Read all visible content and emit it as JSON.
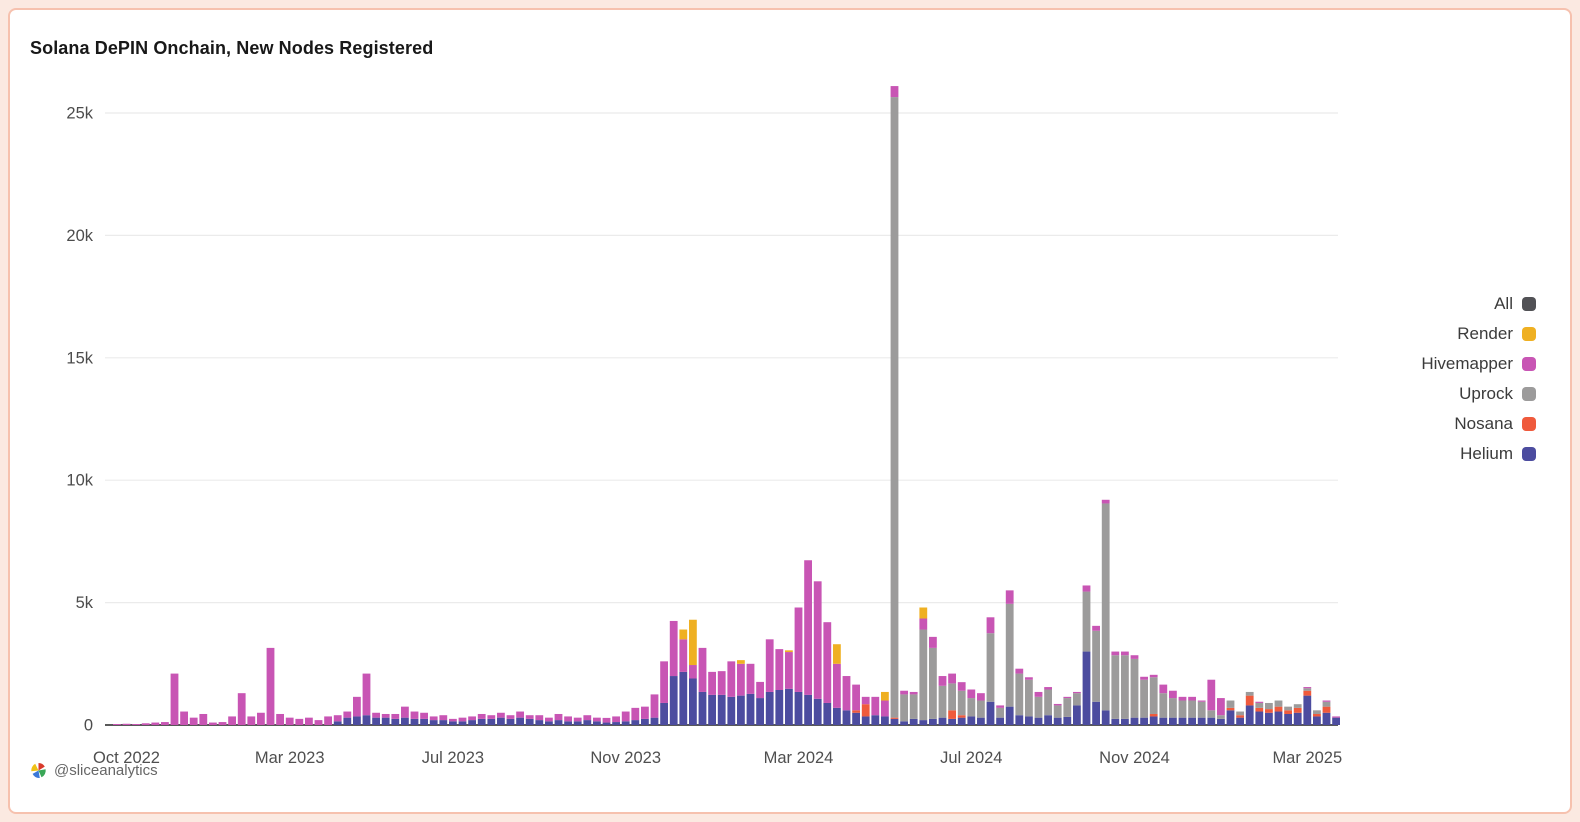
{
  "header": {
    "title": "Solana DePIN Onchain, New Nodes Registered"
  },
  "footer": {
    "handle": "@sliceanalytics",
    "logo_colors": [
      "#D93A2B",
      "#3AA757",
      "#3B78D8",
      "#EFC116"
    ]
  },
  "legend": {
    "position": "right",
    "items": [
      {
        "label": "All",
        "color": "#515155"
      },
      {
        "label": "Render",
        "color": "#EFB022"
      },
      {
        "label": "Hivemapper",
        "color": "#C855B4"
      },
      {
        "label": "Uprock",
        "color": "#9C9B9B"
      },
      {
        "label": "Nosana",
        "color": "#EF5A3C"
      },
      {
        "label": "Helium",
        "color": "#4C4C9F"
      }
    ]
  },
  "chart_data": {
    "type": "bar",
    "stacked": true,
    "title": "Solana DePIN Onchain, New Nodes Registered",
    "xlabel": "",
    "ylabel": "",
    "grid": true,
    "legend_position": "right",
    "ylim": [
      0,
      26500
    ],
    "y_ticks": [
      {
        "value": 0,
        "label": "0"
      },
      {
        "value": 5000,
        "label": "5k"
      },
      {
        "value": 10000,
        "label": "10k"
      },
      {
        "value": 15000,
        "label": "15k"
      },
      {
        "value": 20000,
        "label": "20k"
      },
      {
        "value": 25000,
        "label": "25k"
      }
    ],
    "x_ticks": [
      {
        "index": 1,
        "label": "Oct 2022"
      },
      {
        "index": 18,
        "label": "Mar 2023"
      },
      {
        "index": 35,
        "label": "Jul 2023"
      },
      {
        "index": 53,
        "label": "Nov 2023"
      },
      {
        "index": 71,
        "label": "Mar 2024"
      },
      {
        "index": 89,
        "label": "Jul 2024"
      },
      {
        "index": 106,
        "label": "Nov 2024"
      },
      {
        "index": 124,
        "label": "Mar 2025"
      }
    ],
    "series_order": [
      "Helium",
      "Nosana",
      "Uprock",
      "Hivemapper",
      "Render"
    ],
    "series_colors": {
      "Helium": "#4C4C9F",
      "Nosana": "#EF5A3C",
      "Uprock": "#9C9B9B",
      "Hivemapper": "#C855B4",
      "Render": "#EFB022"
    },
    "cadence": "weekly, Oct 2022 - Mar 2025",
    "bars": [
      [
        0,
        0,
        0,
        40,
        0
      ],
      [
        0,
        0,
        0,
        50,
        0
      ],
      [
        0,
        0,
        0,
        40,
        0
      ],
      [
        0,
        0,
        0,
        70,
        0
      ],
      [
        0,
        0,
        0,
        100,
        0
      ],
      [
        0,
        0,
        0,
        120,
        0
      ],
      [
        0,
        0,
        0,
        2100,
        0
      ],
      [
        0,
        0,
        0,
        550,
        0
      ],
      [
        0,
        0,
        0,
        300,
        0
      ],
      [
        0,
        0,
        0,
        450,
        0
      ],
      [
        0,
        0,
        0,
        100,
        0
      ],
      [
        0,
        0,
        0,
        120,
        0
      ],
      [
        0,
        0,
        0,
        350,
        0
      ],
      [
        0,
        0,
        0,
        1300,
        0
      ],
      [
        0,
        0,
        0,
        350,
        0
      ],
      [
        0,
        0,
        0,
        500,
        0
      ],
      [
        0,
        0,
        0,
        3150,
        0
      ],
      [
        0,
        0,
        0,
        450,
        0
      ],
      [
        0,
        0,
        0,
        300,
        0
      ],
      [
        0,
        0,
        0,
        250,
        0
      ],
      [
        0,
        0,
        0,
        300,
        0
      ],
      [
        0,
        0,
        0,
        200,
        0
      ],
      [
        0,
        0,
        0,
        350,
        0
      ],
      [
        150,
        0,
        0,
        250,
        0
      ],
      [
        300,
        0,
        0,
        250,
        0
      ],
      [
        350,
        0,
        0,
        800,
        0
      ],
      [
        400,
        0,
        0,
        1700,
        0
      ],
      [
        300,
        0,
        0,
        200,
        0
      ],
      [
        300,
        0,
        0,
        150,
        0
      ],
      [
        250,
        0,
        0,
        200,
        0
      ],
      [
        300,
        0,
        0,
        450,
        0
      ],
      [
        250,
        0,
        0,
        300,
        0
      ],
      [
        250,
        0,
        0,
        250,
        0
      ],
      [
        200,
        0,
        0,
        150,
        0
      ],
      [
        200,
        0,
        0,
        200,
        0
      ],
      [
        150,
        0,
        0,
        100,
        0
      ],
      [
        150,
        0,
        0,
        150,
        0
      ],
      [
        200,
        0,
        0,
        150,
        0
      ],
      [
        250,
        0,
        0,
        200,
        0
      ],
      [
        250,
        0,
        0,
        150,
        0
      ],
      [
        300,
        0,
        0,
        200,
        0
      ],
      [
        250,
        0,
        0,
        150,
        0
      ],
      [
        300,
        0,
        0,
        250,
        0
      ],
      [
        250,
        0,
        0,
        150,
        0
      ],
      [
        200,
        0,
        0,
        200,
        0
      ],
      [
        150,
        0,
        0,
        150,
        0
      ],
      [
        200,
        0,
        0,
        250,
        0
      ],
      [
        150,
        0,
        0,
        200,
        0
      ],
      [
        150,
        0,
        0,
        150,
        0
      ],
      [
        200,
        0,
        0,
        200,
        0
      ],
      [
        150,
        0,
        0,
        150,
        0
      ],
      [
        100,
        0,
        0,
        190,
        0
      ],
      [
        120,
        0,
        0,
        230,
        0
      ],
      [
        150,
        0,
        0,
        400,
        0
      ],
      [
        200,
        0,
        0,
        500,
        0
      ],
      [
        250,
        0,
        0,
        500,
        0
      ],
      [
        300,
        0,
        0,
        950,
        0
      ],
      [
        900,
        0,
        0,
        1700,
        0
      ],
      [
        2000,
        0,
        0,
        2250,
        0
      ],
      [
        2170,
        0,
        0,
        1330,
        400
      ],
      [
        1900,
        0,
        0,
        550,
        1850
      ],
      [
        1350,
        0,
        0,
        1800,
        0
      ],
      [
        1230,
        0,
        0,
        940,
        0
      ],
      [
        1230,
        0,
        0,
        970,
        0
      ],
      [
        1150,
        0,
        0,
        1450,
        0
      ],
      [
        1200,
        0,
        0,
        1300,
        150
      ],
      [
        1270,
        0,
        0,
        1230,
        0
      ],
      [
        1100,
        0,
        0,
        660,
        0
      ],
      [
        1350,
        0,
        0,
        2150,
        0
      ],
      [
        1430,
        0,
        0,
        1670,
        0
      ],
      [
        1480,
        0,
        0,
        1500,
        70
      ],
      [
        1350,
        0,
        0,
        3450,
        0
      ],
      [
        1230,
        0,
        0,
        5500,
        0
      ],
      [
        1070,
        0,
        0,
        4800,
        0
      ],
      [
        900,
        0,
        0,
        3300,
        0
      ],
      [
        700,
        0,
        0,
        1800,
        800
      ],
      [
        600,
        0,
        0,
        1400,
        0
      ],
      [
        500,
        100,
        0,
        1050,
        0
      ],
      [
        350,
        500,
        0,
        300,
        0
      ],
      [
        400,
        0,
        0,
        750,
        0
      ],
      [
        350,
        0,
        0,
        650,
        350
      ],
      [
        250,
        50,
        25350,
        450,
        0
      ],
      [
        150,
        0,
        1100,
        150,
        0
      ],
      [
        250,
        0,
        1000,
        100,
        0
      ],
      [
        200,
        0,
        3700,
        450,
        450
      ],
      [
        250,
        0,
        2900,
        450,
        0
      ],
      [
        300,
        0,
        1300,
        400,
        0
      ],
      [
        250,
        350,
        1100,
        400,
        0
      ],
      [
        300,
        100,
        1000,
        350,
        0
      ],
      [
        350,
        0,
        750,
        350,
        0
      ],
      [
        300,
        0,
        700,
        300,
        0
      ],
      [
        950,
        0,
        2800,
        650,
        0
      ],
      [
        300,
        0,
        400,
        100,
        0
      ],
      [
        750,
        0,
        4200,
        550,
        0
      ],
      [
        400,
        0,
        1700,
        200,
        0
      ],
      [
        350,
        0,
        1500,
        100,
        0
      ],
      [
        300,
        0,
        850,
        200,
        0
      ],
      [
        400,
        0,
        1050,
        100,
        0
      ],
      [
        300,
        0,
        500,
        60,
        0
      ],
      [
        330,
        0,
        770,
        50,
        0
      ],
      [
        800,
        0,
        500,
        50,
        0
      ],
      [
        3000,
        0,
        2450,
        250,
        0
      ],
      [
        950,
        0,
        2900,
        200,
        0
      ],
      [
        600,
        0,
        8450,
        150,
        0
      ],
      [
        250,
        0,
        2600,
        150,
        0
      ],
      [
        250,
        0,
        2600,
        150,
        0
      ],
      [
        300,
        0,
        2400,
        150,
        0
      ],
      [
        300,
        0,
        1550,
        120,
        0
      ],
      [
        350,
        100,
        1500,
        100,
        0
      ],
      [
        300,
        0,
        1000,
        350,
        0
      ],
      [
        300,
        0,
        800,
        300,
        0
      ],
      [
        300,
        0,
        700,
        150,
        0
      ],
      [
        300,
        0,
        700,
        150,
        0
      ],
      [
        300,
        0,
        650,
        50,
        0
      ],
      [
        300,
        0,
        300,
        1250,
        0
      ],
      [
        250,
        0,
        150,
        700,
        0
      ],
      [
        600,
        100,
        300,
        0,
        0
      ],
      [
        300,
        100,
        150,
        0,
        0
      ],
      [
        800,
        400,
        150,
        0,
        0
      ],
      [
        550,
        150,
        200,
        50,
        0
      ],
      [
        500,
        150,
        250,
        0,
        0
      ],
      [
        550,
        200,
        250,
        0,
        0
      ],
      [
        450,
        150,
        150,
        0,
        0
      ],
      [
        500,
        200,
        150,
        0,
        0
      ],
      [
        1200,
        200,
        100,
        50,
        0
      ],
      [
        350,
        100,
        150,
        0,
        0
      ],
      [
        500,
        250,
        200,
        50,
        0
      ],
      [
        300,
        0,
        0,
        50,
        0
      ]
    ]
  }
}
